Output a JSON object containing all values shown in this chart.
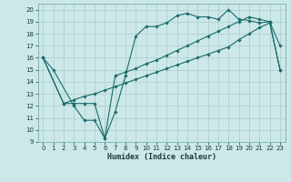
{
  "xlabel": "Humidex (Indice chaleur)",
  "xlim": [
    -0.5,
    23.5
  ],
  "ylim": [
    9,
    20.5
  ],
  "xticks": [
    0,
    1,
    2,
    3,
    4,
    5,
    6,
    7,
    8,
    9,
    10,
    11,
    12,
    13,
    14,
    15,
    16,
    17,
    18,
    19,
    20,
    21,
    22,
    23
  ],
  "yticks": [
    9,
    10,
    11,
    12,
    13,
    14,
    15,
    16,
    17,
    18,
    19,
    20
  ],
  "bg_color": "#cce8e8",
  "grid_color": "#aacccc",
  "line_color": "#1a6b6b",
  "line1_x": [
    0,
    1,
    3,
    4,
    5,
    6,
    7,
    8,
    9,
    10,
    11,
    12,
    13,
    14,
    15,
    16,
    17,
    18,
    19,
    20,
    21,
    22,
    23
  ],
  "line1_y": [
    16,
    15,
    12,
    10.8,
    10.8,
    9.3,
    11.5,
    14.5,
    17.8,
    18.6,
    18.6,
    18.9,
    19.5,
    19.7,
    19.4,
    19.4,
    19.2,
    20.0,
    19.2,
    19.1,
    18.9,
    19.0,
    17.0
  ],
  "line2_x": [
    0,
    2,
    3,
    4,
    5,
    6,
    7,
    8,
    9,
    10,
    11,
    12,
    13,
    14,
    15,
    16,
    17,
    18,
    19,
    20,
    21,
    22,
    23
  ],
  "line2_y": [
    16,
    12.2,
    12.2,
    12.2,
    12.2,
    9.3,
    14.5,
    14.8,
    15.1,
    15.5,
    15.8,
    16.2,
    16.6,
    17.0,
    17.4,
    17.8,
    18.2,
    18.6,
    19.0,
    19.4,
    19.2,
    19.0,
    15.0
  ],
  "line3_x": [
    0,
    2,
    3,
    4,
    5,
    6,
    7,
    8,
    9,
    10,
    11,
    12,
    13,
    14,
    15,
    16,
    17,
    18,
    19,
    20,
    21,
    22,
    23
  ],
  "line3_y": [
    16,
    12.2,
    12.5,
    12.8,
    13.0,
    13.3,
    13.6,
    13.9,
    14.2,
    14.5,
    14.8,
    15.1,
    15.4,
    15.7,
    16.0,
    16.3,
    16.6,
    16.9,
    17.5,
    18.0,
    18.5,
    18.9,
    15.0
  ]
}
